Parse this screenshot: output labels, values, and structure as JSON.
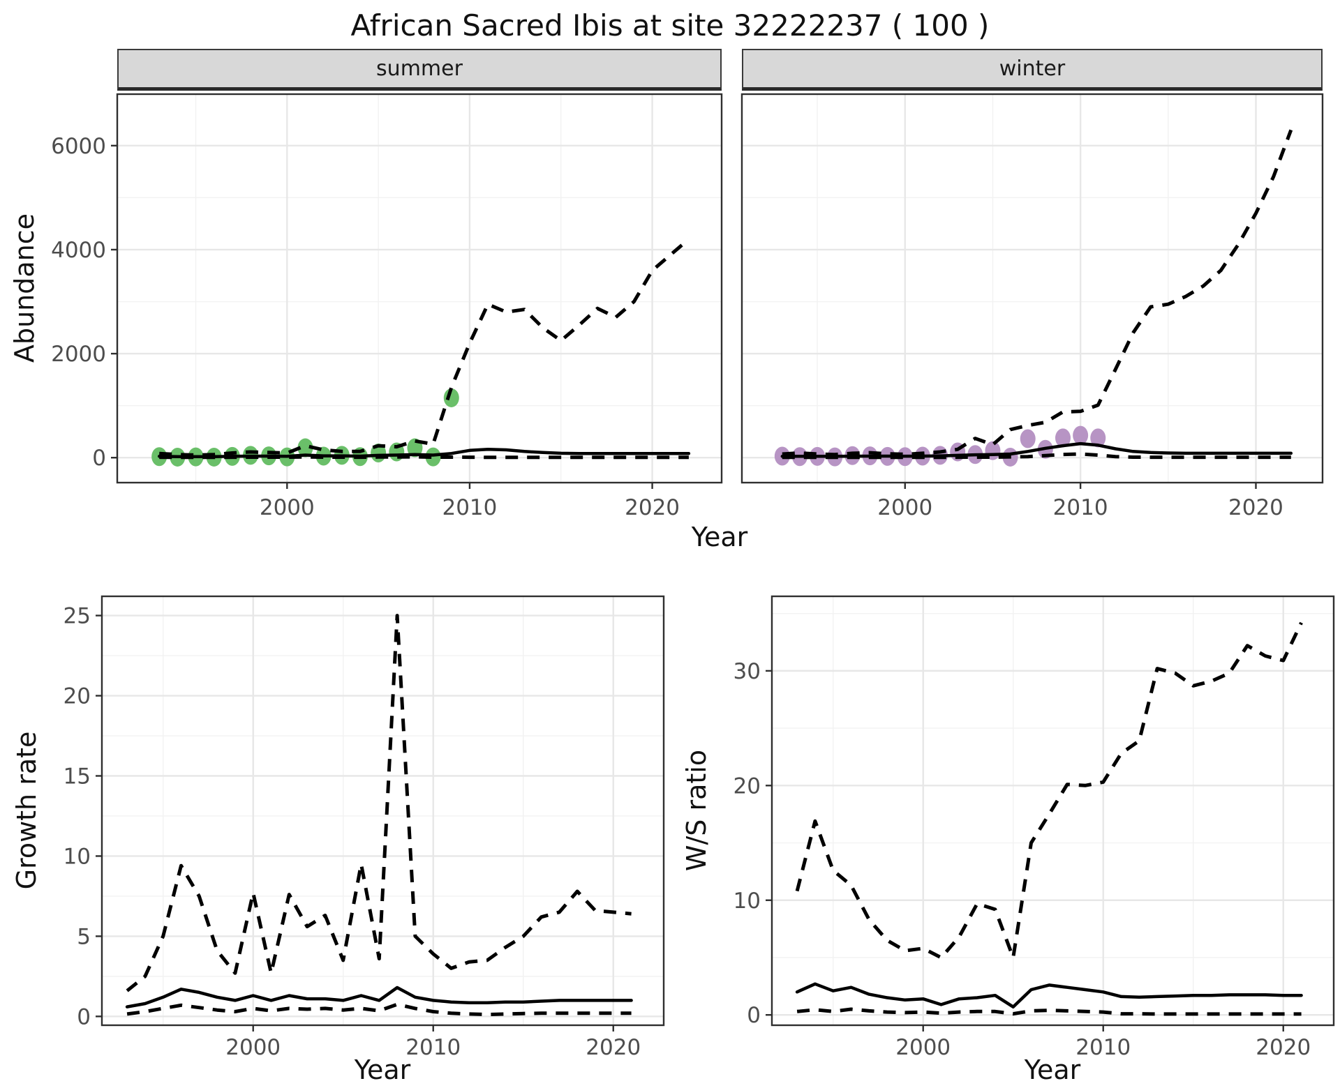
{
  "page": {
    "title": "African Sacred Ibis at site 32222237 ( 100 )"
  },
  "colors": {
    "summer_point": "#6abf69",
    "winter_point": "#b794c4",
    "line": "#000000",
    "grid_major": "#e7e7e7",
    "grid_minor": "#f2f2f2",
    "panel_border": "#2f2f2f",
    "strip_bg": "#d8d8d8",
    "tick_label": "#4d4d4d"
  },
  "shared_x_axis_title": "Year",
  "chart_data": [
    {
      "id": "abundance-summer",
      "type": "line",
      "facet_label": "summer",
      "xlabel": "Year",
      "ylabel": "Abundance",
      "xlim": [
        1990.7,
        2023.8
      ],
      "ylim": [
        -480,
        6990
      ],
      "xticks": [
        2000,
        2010,
        2020
      ],
      "xtick_labels": [
        "2000",
        "2010",
        "2020"
      ],
      "xminor": [
        1995,
        2005,
        2015
      ],
      "yticks": [
        0,
        2000,
        4000,
        6000
      ],
      "ytick_labels": [
        "0",
        "2000",
        "4000",
        "6000"
      ],
      "yminor": [
        1000,
        3000,
        5000
      ],
      "years": [
        1993,
        1994,
        1995,
        1996,
        1997,
        1998,
        1999,
        2000,
        2001,
        2002,
        2003,
        2004,
        2005,
        2006,
        2007,
        2008,
        2009,
        2010,
        2011,
        2012,
        2013,
        2014,
        2015,
        2016,
        2017,
        2018,
        2019,
        2020,
        2021,
        2022
      ],
      "series": [
        {
          "name": "upper_ci",
          "style": "dashed",
          "values": [
            80,
            60,
            50,
            60,
            90,
            110,
            100,
            90,
            230,
            150,
            120,
            120,
            230,
            210,
            320,
            260,
            1350,
            2200,
            2950,
            2800,
            2850,
            2500,
            2250,
            2550,
            2870,
            2700,
            3000,
            3600,
            3900,
            4200
          ]
        },
        {
          "name": "median",
          "style": "solid",
          "values": [
            25,
            20,
            20,
            20,
            25,
            30,
            30,
            25,
            50,
            35,
            35,
            30,
            45,
            50,
            60,
            50,
            80,
            140,
            160,
            150,
            120,
            100,
            85,
            80,
            80,
            80,
            80,
            80,
            80,
            80
          ]
        },
        {
          "name": "lower_ci",
          "style": "dashed",
          "values": [
            8,
            5,
            5,
            5,
            8,
            10,
            10,
            8,
            15,
            10,
            10,
            8,
            12,
            12,
            15,
            10,
            10,
            8,
            5,
            5,
            5,
            5,
            5,
            5,
            5,
            5,
            5,
            5,
            5,
            5
          ]
        }
      ],
      "points": {
        "name": "observed-summer-counts",
        "color": "#6abf69",
        "years": [
          1993,
          1994,
          1995,
          1996,
          1997,
          1998,
          1999,
          2000,
          2001,
          2002,
          2003,
          2004,
          2005,
          2006,
          2007,
          2008,
          2009
        ],
        "values": [
          20,
          10,
          15,
          10,
          25,
          45,
          35,
          15,
          190,
          30,
          45,
          20,
          90,
          110,
          190,
          15,
          1150
        ]
      }
    },
    {
      "id": "abundance-winter",
      "type": "line",
      "facet_label": "winter",
      "xlabel": "Year",
      "ylabel": "Abundance",
      "xlim": [
        1990.7,
        2023.8
      ],
      "ylim": [
        -480,
        6990
      ],
      "xticks": [
        2000,
        2010,
        2020
      ],
      "xtick_labels": [
        "2000",
        "2010",
        "2020"
      ],
      "xminor": [
        1995,
        2005,
        2015
      ],
      "yticks": [
        0,
        2000,
        4000,
        6000
      ],
      "ytick_labels": [
        "0",
        "2000",
        "4000",
        "6000"
      ],
      "yminor": [
        1000,
        3000,
        5000
      ],
      "years": [
        1993,
        1994,
        1995,
        1996,
        1997,
        1998,
        1999,
        2000,
        2001,
        2002,
        2003,
        2004,
        2005,
        2006,
        2007,
        2008,
        2009,
        2010,
        2011,
        2012,
        2013,
        2014,
        2015,
        2016,
        2017,
        2018,
        2019,
        2020,
        2021,
        2022
      ],
      "series": [
        {
          "name": "upper_ci",
          "style": "dashed",
          "values": [
            70,
            90,
            70,
            60,
            85,
            95,
            75,
            65,
            85,
            110,
            160,
            370,
            250,
            540,
            620,
            680,
            880,
            890,
            1010,
            1700,
            2400,
            2900,
            2950,
            3100,
            3300,
            3600,
            4100,
            4700,
            5400,
            6300
          ]
        },
        {
          "name": "median",
          "style": "solid",
          "values": [
            25,
            25,
            25,
            25,
            28,
            30,
            30,
            28,
            30,
            35,
            45,
            55,
            60,
            70,
            120,
            180,
            230,
            270,
            240,
            170,
            120,
            100,
            90,
            85,
            85,
            85,
            85,
            85,
            85,
            85
          ]
        },
        {
          "name": "lower_ci",
          "style": "dashed",
          "values": [
            5,
            5,
            5,
            5,
            5,
            5,
            5,
            5,
            5,
            6,
            8,
            10,
            10,
            15,
            20,
            40,
            60,
            70,
            50,
            20,
            10,
            8,
            8,
            8,
            8,
            8,
            8,
            8,
            8,
            8
          ]
        }
      ],
      "points": {
        "name": "observed-winter-counts",
        "color": "#b794c4",
        "years": [
          1993,
          1994,
          1995,
          1996,
          1997,
          1998,
          1999,
          2000,
          2001,
          2002,
          2003,
          2004,
          2005,
          2006,
          2007,
          2008,
          2009,
          2010,
          2011
        ],
        "values": [
          30,
          20,
          25,
          15,
          40,
          35,
          25,
          20,
          30,
          45,
          110,
          60,
          135,
          10,
          365,
          160,
          380,
          430,
          380
        ]
      }
    },
    {
      "id": "growth-rate",
      "type": "line",
      "facet_label": "",
      "xlabel": "Year",
      "ylabel": "Growth rate",
      "xlim": [
        1991.6,
        2022.8
      ],
      "ylim": [
        -0.55,
        26.2
      ],
      "xticks": [
        2000,
        2010,
        2020
      ],
      "xtick_labels": [
        "2000",
        "2010",
        "2020"
      ],
      "xminor": [
        1995,
        2005,
        2015
      ],
      "yticks": [
        0,
        5,
        10,
        15,
        20,
        25
      ],
      "ytick_labels": [
        "0",
        "5",
        "10",
        "15",
        "20",
        "25"
      ],
      "yminor": [
        2.5,
        7.5,
        12.5,
        17.5,
        22.5
      ],
      "years": [
        1993,
        1994,
        1995,
        1996,
        1997,
        1998,
        1999,
        2000,
        2001,
        2002,
        2003,
        2004,
        2005,
        2006,
        2007,
        2008,
        2009,
        2010,
        2011,
        2012,
        2013,
        2014,
        2015,
        2016,
        2017,
        2018,
        2019,
        2020,
        2021
      ],
      "series": [
        {
          "name": "upper_ci",
          "style": "dashed",
          "values": [
            1.6,
            2.5,
            5.0,
            9.4,
            7.5,
            4.1,
            2.7,
            7.7,
            2.7,
            7.6,
            5.6,
            6.3,
            3.5,
            9.5,
            3.6,
            25.0,
            5.0,
            3.9,
            3.0,
            3.4,
            3.5,
            4.3,
            5.0,
            6.2,
            6.5,
            7.8,
            6.6,
            6.5,
            6.4
          ]
        },
        {
          "name": "median",
          "style": "solid",
          "values": [
            0.6,
            0.8,
            1.2,
            1.7,
            1.5,
            1.2,
            1.0,
            1.3,
            1.0,
            1.3,
            1.1,
            1.1,
            1.0,
            1.3,
            1.0,
            1.8,
            1.2,
            1.0,
            0.9,
            0.85,
            0.85,
            0.9,
            0.9,
            0.95,
            1.0,
            1.0,
            1.0,
            1.0,
            1.0
          ]
        },
        {
          "name": "lower_ci",
          "style": "dashed",
          "values": [
            0.15,
            0.3,
            0.5,
            0.7,
            0.55,
            0.4,
            0.3,
            0.5,
            0.35,
            0.5,
            0.45,
            0.5,
            0.4,
            0.5,
            0.35,
            0.75,
            0.5,
            0.3,
            0.2,
            0.15,
            0.12,
            0.15,
            0.18,
            0.2,
            0.2,
            0.2,
            0.2,
            0.2,
            0.2
          ]
        }
      ]
    },
    {
      "id": "ws-ratio",
      "type": "line",
      "facet_label": "",
      "xlabel": "Year",
      "ylabel": "W/S ratio",
      "xlim": [
        1991.6,
        2022.8
      ],
      "ylim": [
        -0.9,
        36.5
      ],
      "xticks": [
        2000,
        2010,
        2020
      ],
      "xtick_labels": [
        "2000",
        "2010",
        "2020"
      ],
      "xminor": [
        1995,
        2005,
        2015
      ],
      "yticks": [
        0,
        10,
        20,
        30
      ],
      "ytick_labels": [
        "0",
        "10",
        "20",
        "30"
      ],
      "yminor": [
        5,
        15,
        25,
        35
      ],
      "years": [
        1993,
        1994,
        1995,
        1996,
        1997,
        1998,
        1999,
        2000,
        2001,
        2002,
        2003,
        2004,
        2005,
        2006,
        2007,
        2008,
        2009,
        2010,
        2011,
        2012,
        2013,
        2014,
        2015,
        2016,
        2017,
        2018,
        2019,
        2020,
        2021
      ],
      "series": [
        {
          "name": "upper_ci",
          "style": "dashed",
          "values": [
            10.8,
            16.9,
            12.6,
            11.3,
            8.3,
            6.5,
            5.6,
            5.8,
            5.0,
            6.8,
            9.7,
            9.2,
            5.0,
            15.0,
            17.5,
            20.1,
            20.0,
            20.3,
            22.8,
            23.9,
            30.2,
            29.8,
            28.7,
            29.1,
            29.8,
            32.2,
            31.3,
            30.9,
            34.2
          ]
        },
        {
          "name": "median",
          "style": "solid",
          "values": [
            2.0,
            2.7,
            2.1,
            2.4,
            1.8,
            1.5,
            1.3,
            1.4,
            0.9,
            1.4,
            1.5,
            1.7,
            0.7,
            2.2,
            2.6,
            2.4,
            2.2,
            2.0,
            1.6,
            1.55,
            1.6,
            1.65,
            1.7,
            1.7,
            1.75,
            1.75,
            1.75,
            1.7,
            1.7
          ]
        },
        {
          "name": "lower_ci",
          "style": "dashed",
          "values": [
            0.3,
            0.45,
            0.3,
            0.5,
            0.35,
            0.25,
            0.2,
            0.25,
            0.15,
            0.25,
            0.3,
            0.3,
            0.1,
            0.35,
            0.4,
            0.35,
            0.3,
            0.25,
            0.1,
            0.1,
            0.08,
            0.08,
            0.08,
            0.08,
            0.08,
            0.08,
            0.08,
            0.08,
            0.08
          ]
        }
      ]
    }
  ]
}
